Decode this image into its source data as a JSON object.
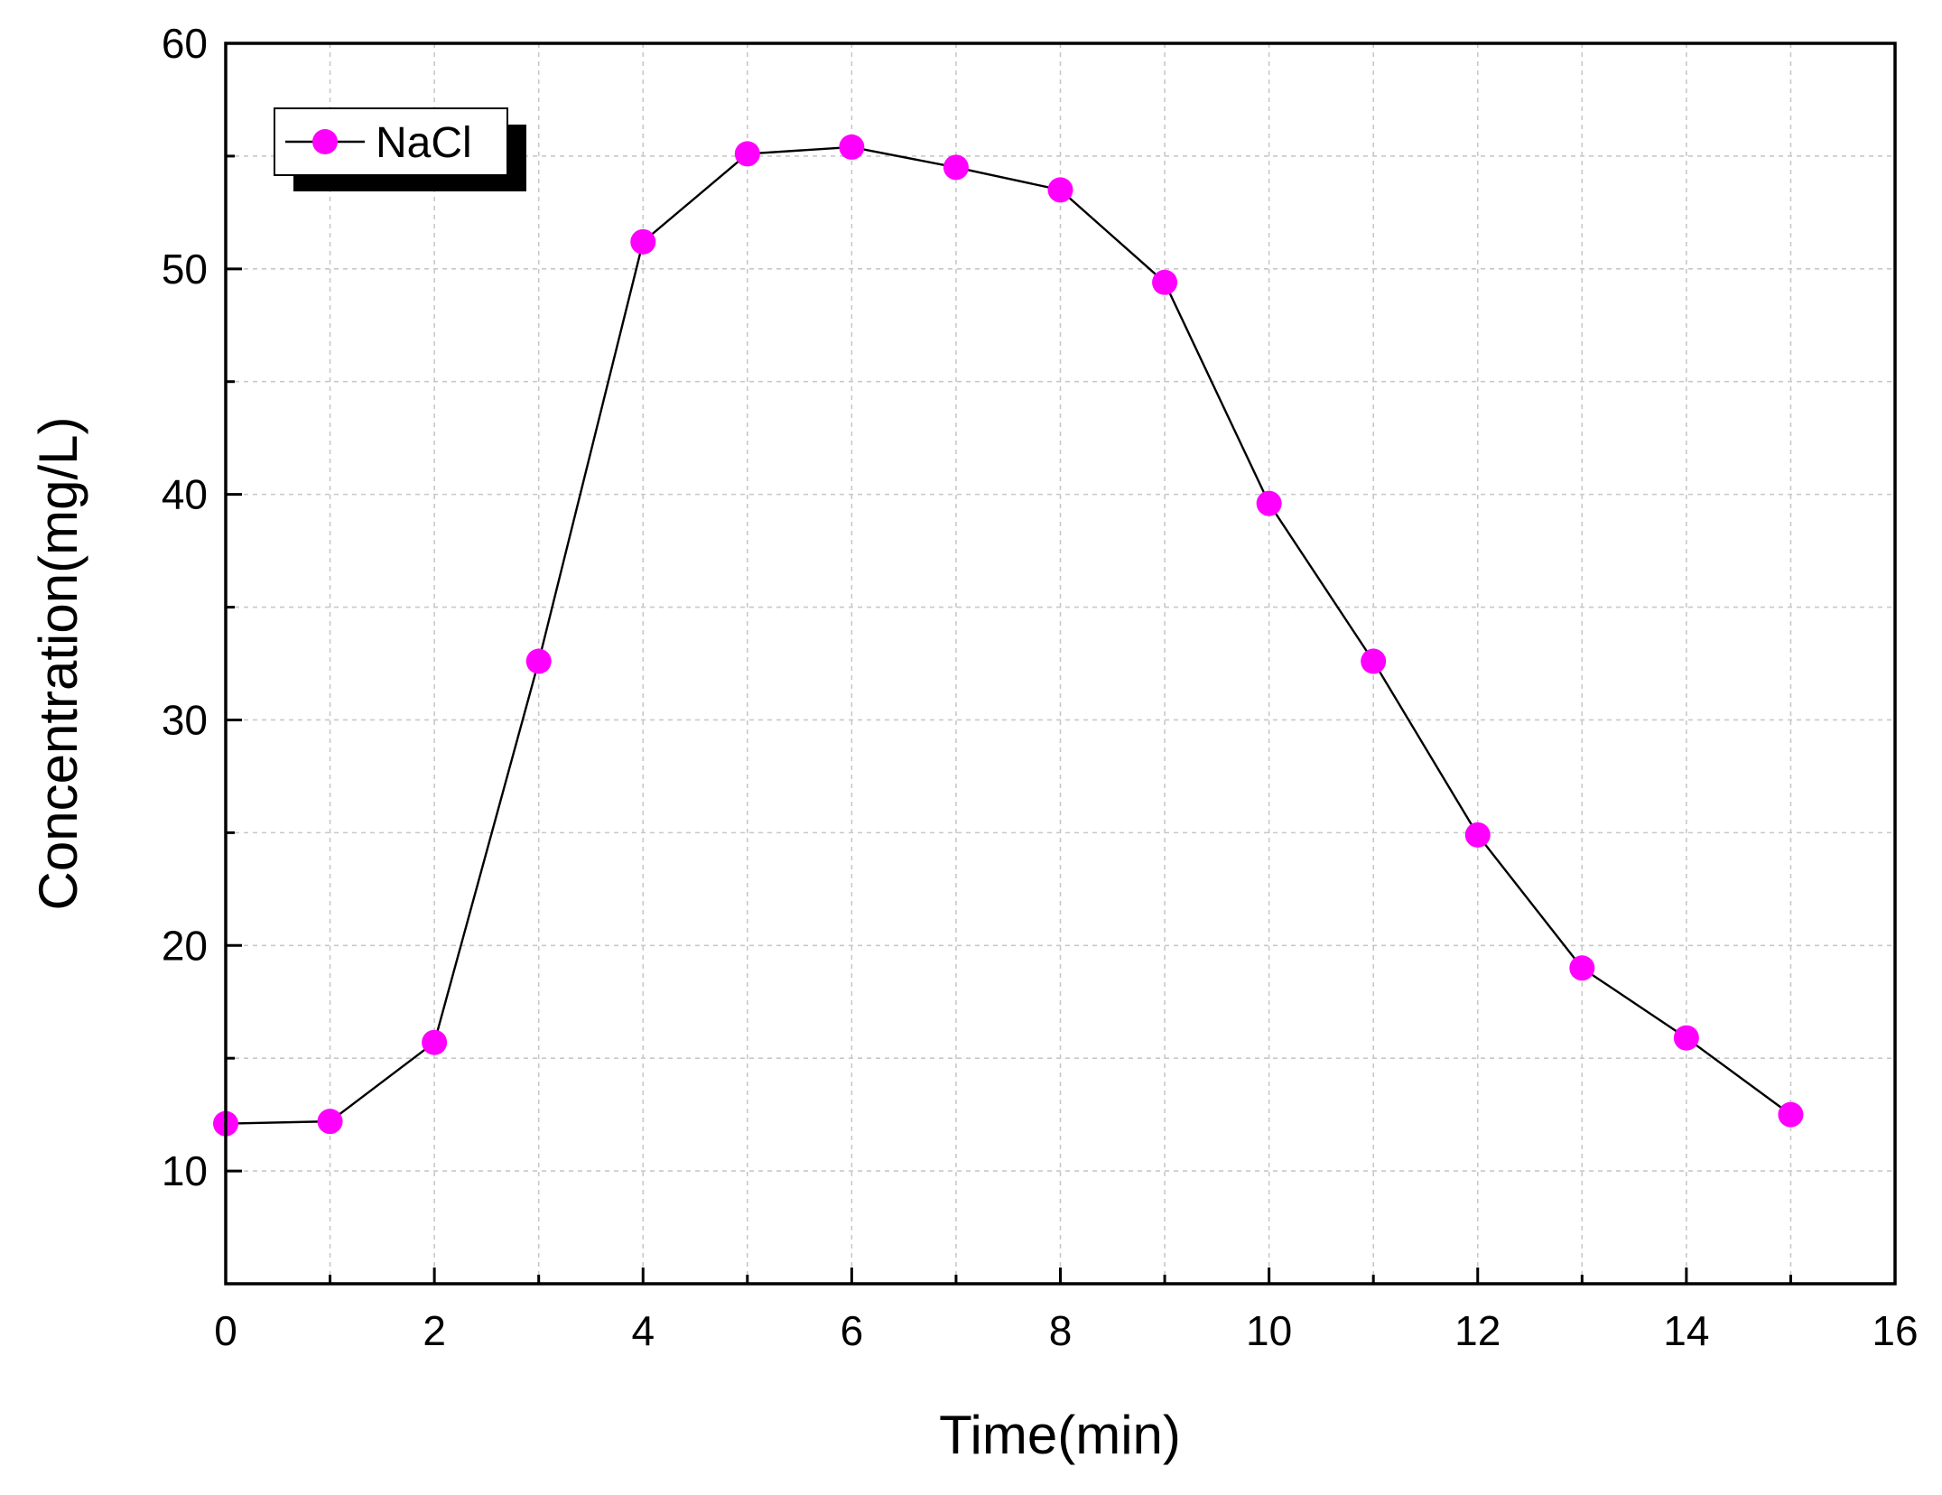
{
  "chart_data": {
    "type": "line",
    "title": "",
    "xlabel": "Time(min)",
    "ylabel": "Concentration(mg/L)",
    "xlim": [
      0,
      16
    ],
    "ylim": [
      5,
      60
    ],
    "xticks": [
      0,
      2,
      4,
      6,
      8,
      10,
      12,
      14,
      16
    ],
    "yticks": [
      10,
      20,
      30,
      40,
      50,
      60
    ],
    "grid": true,
    "legend_position": "top-left",
    "series": [
      {
        "name": "NaCl",
        "color": "#ff00ff",
        "line_color": "#000000",
        "marker": "circle",
        "x": [
          0,
          1,
          2,
          3,
          4,
          5,
          6,
          7,
          8,
          9,
          10,
          11,
          12,
          13,
          14,
          15
        ],
        "y": [
          12.1,
          12.2,
          15.7,
          32.6,
          51.2,
          55.1,
          55.4,
          54.5,
          53.5,
          49.4,
          39.6,
          32.6,
          24.9,
          19.0,
          15.9,
          12.5
        ]
      }
    ]
  }
}
